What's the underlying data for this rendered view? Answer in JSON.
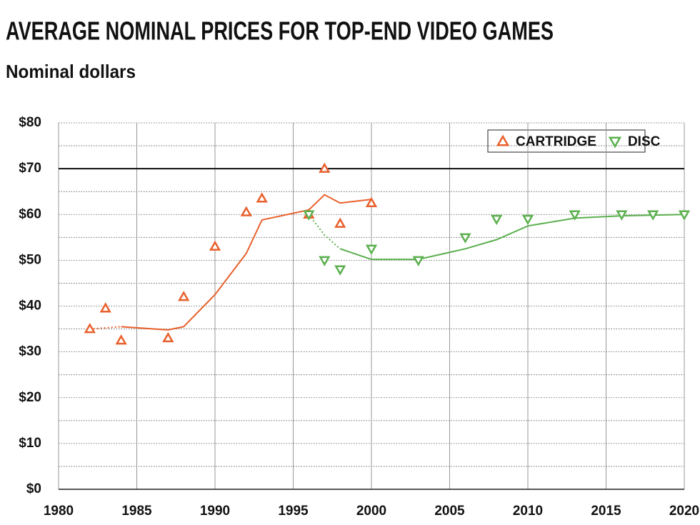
{
  "chart_data": {
    "type": "scatter",
    "title": "AVERAGE NOMINAL PRICES FOR TOP-END VIDEO GAMES",
    "subtitle": "Nominal dollars",
    "xlim": [
      1980,
      2020
    ],
    "xticks": [
      1980,
      1985,
      1990,
      1995,
      2000,
      2005,
      2010,
      2015,
      2020
    ],
    "ylim": [
      0,
      80
    ],
    "yticks": [
      {
        "value": 0,
        "label": "$0"
      },
      {
        "value": 10,
        "label": "$10"
      },
      {
        "value": 20,
        "label": "$20"
      },
      {
        "value": 30,
        "label": "$30"
      },
      {
        "value": 40,
        "label": "$40"
      },
      {
        "value": 50,
        "label": "$50"
      },
      {
        "value": 60,
        "label": "$60"
      },
      {
        "value": 70,
        "label": "$70"
      },
      {
        "value": 80,
        "label": "$80"
      }
    ],
    "y_minor_ticks": [
      5,
      15,
      25,
      35,
      45,
      55,
      65,
      75
    ],
    "grid": true,
    "reference_line": 70,
    "legend": "upper right",
    "series": [
      {
        "name": "CARTRIDGE",
        "color": "#e8602c",
        "marker": "triangle-up",
        "x": [
          1982,
          1983,
          1984,
          1987,
          1988,
          1990,
          1992,
          1993,
          1996,
          1997,
          1998,
          2000
        ],
        "values": [
          35,
          39.5,
          32.5,
          33,
          42,
          53,
          60.5,
          63.5,
          60,
          70,
          58,
          62.5
        ]
      },
      {
        "name": "DISC",
        "color": "#5cb04f",
        "marker": "triangle-down",
        "x": [
          1996,
          1997,
          1998,
          2000,
          2003,
          2006,
          2008,
          2010,
          2013,
          2016,
          2018,
          2020
        ],
        "values": [
          60,
          50,
          48,
          52.5,
          50,
          55,
          59,
          59,
          60,
          60,
          60,
          60
        ]
      }
    ],
    "trend_lines": [
      {
        "color": "#e8602c",
        "style": "dotted",
        "x": [
          1982,
          1984
        ],
        "values": [
          35,
          35.5
        ]
      },
      {
        "color": "#e8602c",
        "style": "solid",
        "x": [
          1984,
          1987,
          1988,
          1990,
          1992,
          1993,
          1996,
          1997,
          1998,
          2000
        ],
        "values": [
          35.5,
          34.8,
          35.5,
          42.5,
          51.5,
          58.8,
          61,
          64.3,
          62.5,
          63.3
        ]
      },
      {
        "color": "#5cb04f",
        "style": "dotted",
        "x": [
          1996,
          1997,
          1998
        ],
        "values": [
          60,
          55.5,
          52.5
        ]
      },
      {
        "color": "#5cb04f",
        "style": "solid",
        "x": [
          1998,
          2000,
          2003,
          2006,
          2008,
          2010,
          2013,
          2016,
          2020
        ],
        "values": [
          52.5,
          50.2,
          50.2,
          52.5,
          54.5,
          57.5,
          59.2,
          59.7,
          60
        ]
      }
    ]
  }
}
